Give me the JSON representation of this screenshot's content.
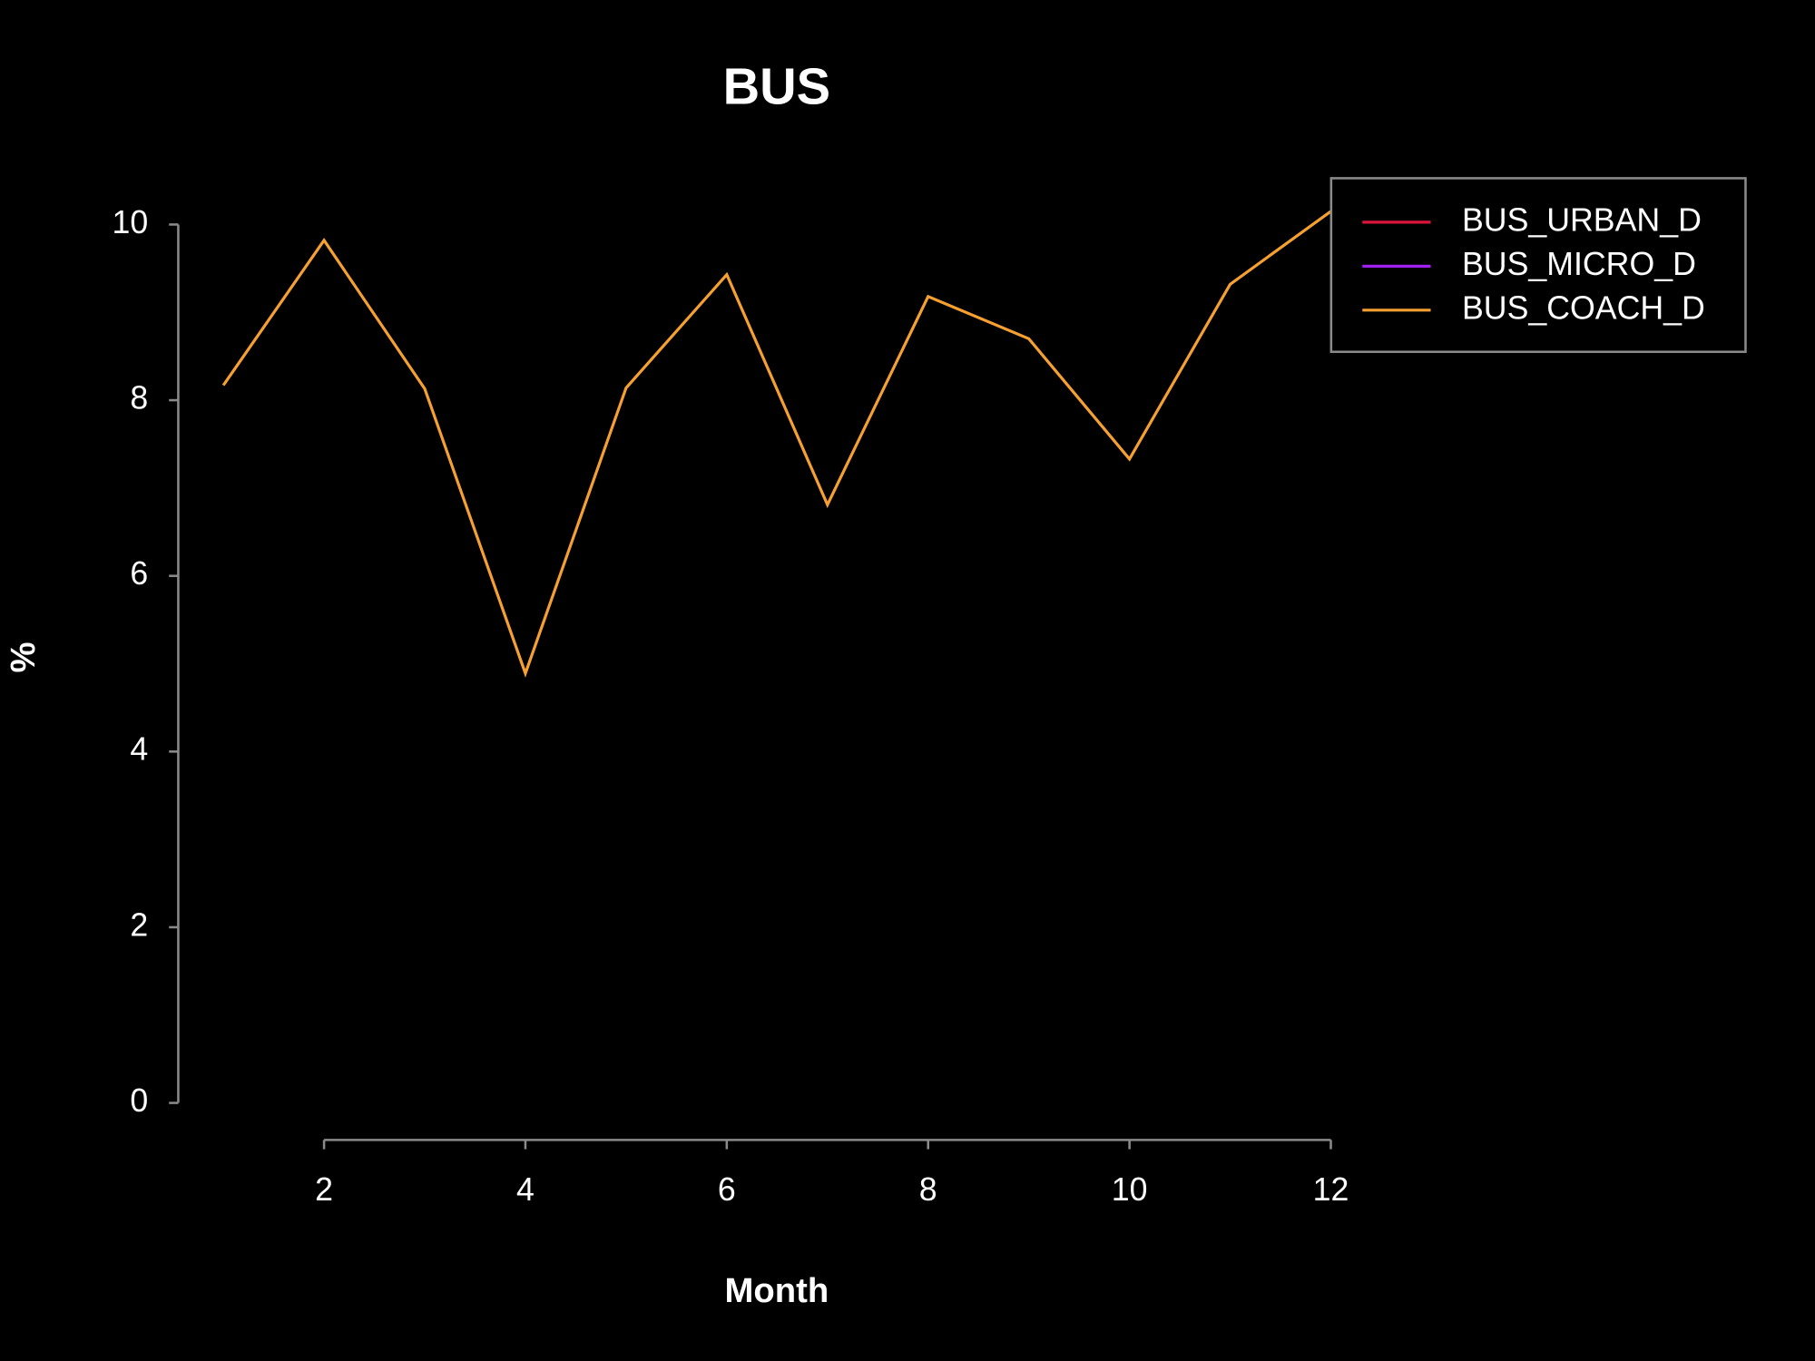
{
  "chart_data": {
    "type": "line",
    "title": "BUS",
    "x_label": "Month",
    "y_label": "%",
    "x": [
      1,
      2,
      3,
      4,
      5,
      6,
      7,
      8,
      9,
      10,
      11,
      12
    ],
    "series": [
      {
        "name": "BUS_URBAN_D",
        "color": "#dc143c",
        "values": [
          null,
          null,
          null,
          null,
          null,
          null,
          null,
          null,
          null,
          null,
          null,
          null
        ]
      },
      {
        "name": "BUS_MICRO_D",
        "color": "#a020f0",
        "values": [
          null,
          null,
          null,
          null,
          null,
          null,
          null,
          null,
          null,
          null,
          null,
          null
        ]
      },
      {
        "name": "BUS_COACH_D",
        "color": "#f5a030",
        "values": [
          8.17,
          9.82,
          8.13,
          4.89,
          8.14,
          9.43,
          6.81,
          9.18,
          8.7,
          7.33,
          9.32,
          10.15
        ]
      }
    ],
    "xlim": [
      0.56,
      12.44
    ],
    "xticks": [
      2,
      4,
      6,
      8,
      10,
      12
    ],
    "ylim": [
      0,
      10
    ],
    "yticks": [
      0,
      2,
      4,
      6,
      8,
      10
    ],
    "legend": "top-right"
  }
}
